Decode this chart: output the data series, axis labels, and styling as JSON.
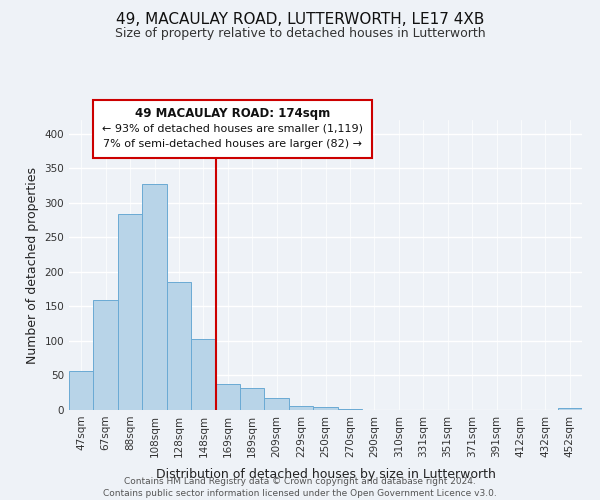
{
  "title": "49, MACAULAY ROAD, LUTTERWORTH, LE17 4XB",
  "subtitle": "Size of property relative to detached houses in Lutterworth",
  "xlabel": "Distribution of detached houses by size in Lutterworth",
  "ylabel": "Number of detached properties",
  "bar_labels": [
    "47sqm",
    "67sqm",
    "88sqm",
    "108sqm",
    "128sqm",
    "148sqm",
    "169sqm",
    "189sqm",
    "209sqm",
    "229sqm",
    "250sqm",
    "270sqm",
    "290sqm",
    "310sqm",
    "331sqm",
    "351sqm",
    "371sqm",
    "391sqm",
    "412sqm",
    "432sqm",
    "452sqm"
  ],
  "bar_values": [
    57,
    160,
    284,
    328,
    185,
    103,
    38,
    32,
    18,
    6,
    5,
    2,
    0,
    0,
    0,
    0,
    0,
    0,
    0,
    0,
    3
  ],
  "bar_color": "#b8d4e8",
  "bar_edge_color": "#6aaad4",
  "ylim": [
    0,
    420
  ],
  "yticks": [
    0,
    50,
    100,
    150,
    200,
    250,
    300,
    350,
    400
  ],
  "vline_x_index": 6.0,
  "vline_color": "#cc0000",
  "annotation_line1": "49 MACAULAY ROAD: 174sqm",
  "annotation_line2": "← 93% of detached houses are smaller (1,119)",
  "annotation_line3": "7% of semi-detached houses are larger (82) →",
  "annotation_box_edge_color": "#cc0000",
  "footer1": "Contains HM Land Registry data © Crown copyright and database right 2024.",
  "footer2": "Contains public sector information licensed under the Open Government Licence v3.0.",
  "background_color": "#eef2f7",
  "grid_color": "#ffffff",
  "title_fontsize": 11,
  "subtitle_fontsize": 9,
  "axis_label_fontsize": 9,
  "tick_fontsize": 7.5
}
